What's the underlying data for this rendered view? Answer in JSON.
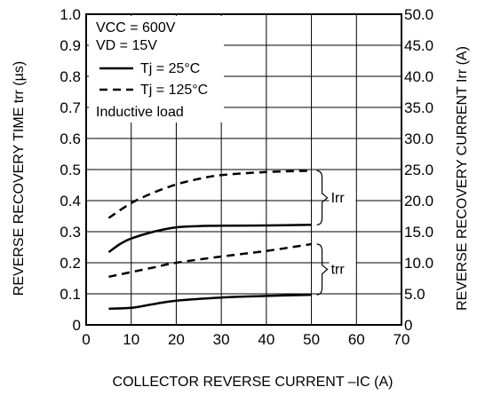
{
  "chart_data": {
    "type": "line",
    "xlabel": "COLLECTOR REVERSE CURRENT  –IC (A)",
    "ylabel_left": "REVERSE RECOVERY TIME  trr (µs)",
    "ylabel_right": "REVERSE RECOVERY CURRENT  Irr (A)",
    "xlim": [
      0,
      70
    ],
    "ylim_left": [
      0,
      1.0
    ],
    "ylim_right": [
      0,
      50.0
    ],
    "x_ticks": [
      "0",
      "10",
      "20",
      "30",
      "40",
      "50",
      "60",
      "70"
    ],
    "y_left_ticks": [
      "0",
      "0.1",
      "0.2",
      "0.3",
      "0.4",
      "0.5",
      "0.6",
      "0.7",
      "0.8",
      "0.9",
      "1.0"
    ],
    "y_right_ticks": [
      "0",
      "5.0",
      "10.0",
      "15.0",
      "20.0",
      "25.0",
      "30.0",
      "35.0",
      "40.0",
      "45.0",
      "50.0"
    ],
    "grid": true,
    "legend": {
      "position": "top-left",
      "conditions": [
        "VCC = 600V",
        "VD = 15V"
      ],
      "entries": [
        {
          "label": "Tj = 25°C",
          "style": "solid"
        },
        {
          "label": "Tj = 125°C",
          "style": "dashed"
        }
      ],
      "note": "Inductive load"
    },
    "annotations": [
      "Irr",
      "trr"
    ],
    "series": [
      {
        "group": "Irr",
        "legend": "Tj = 125°C",
        "style": "dashed",
        "axis": "right",
        "x": [
          5,
          10,
          15,
          20,
          25,
          30,
          40,
          50
        ],
        "y": [
          17.2,
          19.6,
          21.3,
          22.6,
          23.5,
          24.1,
          24.6,
          24.8
        ]
      },
      {
        "group": "Irr",
        "legend": "Tj = 25°C",
        "style": "solid",
        "axis": "right",
        "x": [
          5,
          7.5,
          10,
          15,
          20,
          25,
          30,
          40,
          50
        ],
        "y": [
          11.7,
          13.0,
          13.9,
          15.0,
          15.7,
          15.9,
          15.95,
          16.0,
          16.1
        ]
      },
      {
        "group": "trr",
        "legend": "Tj = 125°C",
        "style": "dashed",
        "axis": "left",
        "x": [
          5,
          10,
          15,
          20,
          30,
          40,
          50
        ],
        "y": [
          0.155,
          0.17,
          0.185,
          0.2,
          0.22,
          0.238,
          0.26
        ]
      },
      {
        "group": "trr",
        "legend": "Tj = 25°C",
        "style": "solid",
        "axis": "left",
        "x": [
          5,
          10,
          15,
          20,
          30,
          40,
          50
        ],
        "y": [
          0.052,
          0.055,
          0.067,
          0.078,
          0.088,
          0.093,
          0.097
        ]
      }
    ]
  }
}
